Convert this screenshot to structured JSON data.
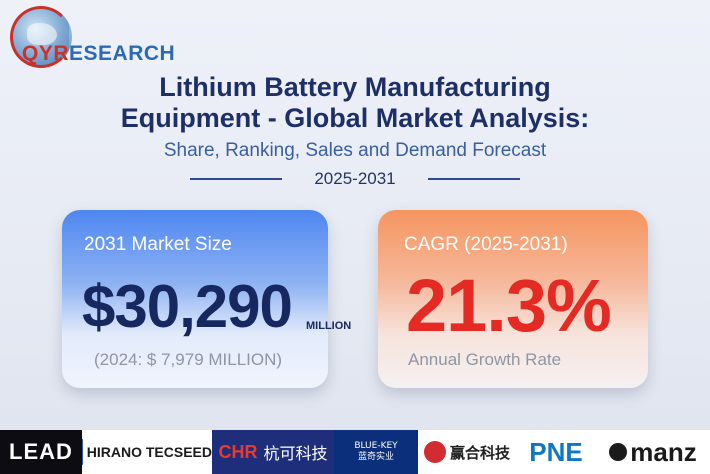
{
  "brand": {
    "logo_q": "Q",
    "logo_y": "Y",
    "logo_r": "R",
    "logo_rest": "ESEARCH"
  },
  "header": {
    "title_line1": "Lithium Battery Manufacturing",
    "title_line2": "Equipment - Global Market Analysis:",
    "subtitle": "Share, Ranking, Sales and Demand Forecast",
    "years": "2025-2031"
  },
  "market_card": {
    "label": "2031 Market Size",
    "value": "$30,290",
    "unit": "MILLION",
    "footnote": "(2024: $ 7,979 MILLION)"
  },
  "cagr_card": {
    "label": "CAGR (2025-2031)",
    "value": "21.3%",
    "footnote": "Annual Growth Rate"
  },
  "partners": {
    "lead": "LEAD",
    "hirano": "HIRANO TECSEED",
    "chr": "CHR",
    "chr_cn": "杭可科技",
    "bluekey": "BLUE-KEY",
    "bluekey_cn": "蓝奇实业",
    "yinghe": "赢合科技",
    "pne": "PNE",
    "manz": "manz"
  },
  "colors": {
    "title": "#1d2f66",
    "market_value": "#16285f",
    "cagr_value": "#e52a24",
    "blue_card_top": "#4e86f0",
    "orange_card_top": "#f5955f"
  }
}
